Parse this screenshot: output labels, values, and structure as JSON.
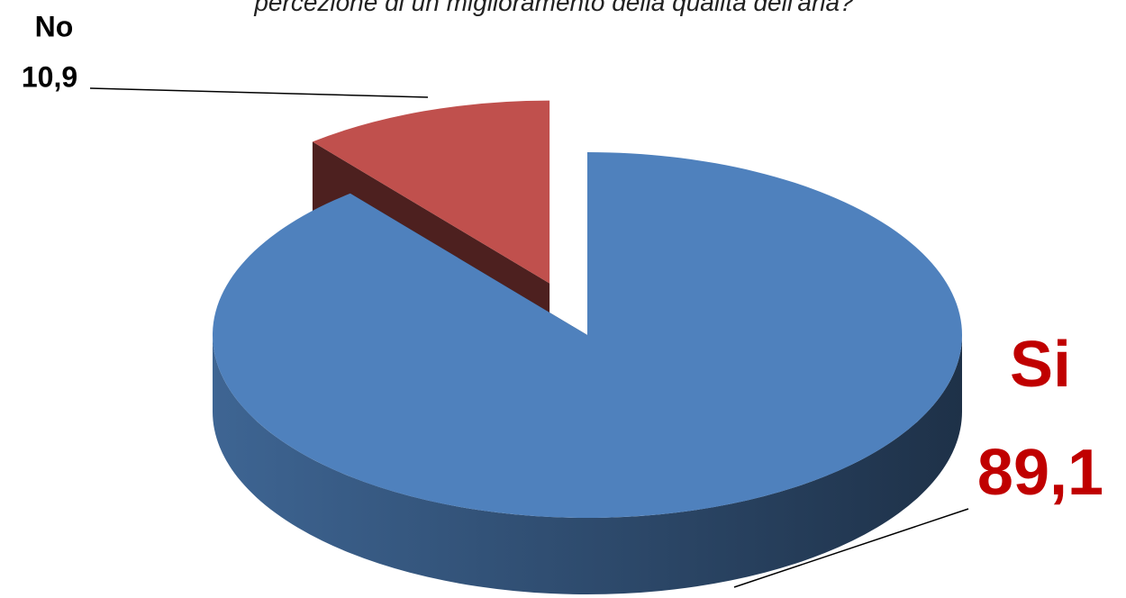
{
  "chart_data": {
    "type": "pie",
    "title": "percezione di un miglioramento della qualità dell'aria?",
    "categories": [
      "Si",
      "No"
    ],
    "values": [
      89.1,
      10.9
    ],
    "value_labels": [
      "89,1",
      "10,9"
    ],
    "colors": [
      "#4f81bd",
      "#c0504d"
    ]
  }
}
